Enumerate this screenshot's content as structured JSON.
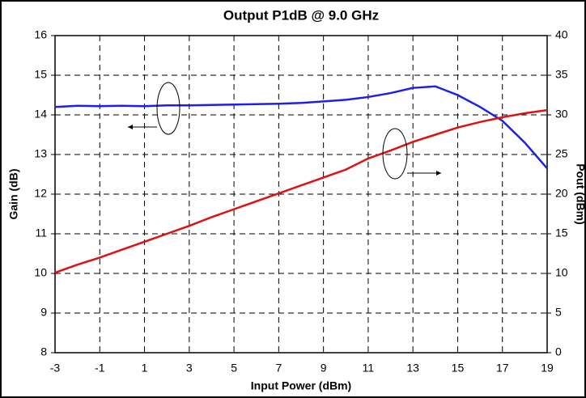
{
  "chart_data": {
    "type": "line",
    "title": "Output P1dB @ 9.0 GHz",
    "xlabel": "Input Power (dBm)",
    "ylabel": "Gain (dB)",
    "y2label": "Pout (dBm)",
    "x": [
      -3,
      -2,
      -1,
      0,
      1,
      2,
      3,
      4,
      5,
      6,
      7,
      8,
      9,
      10,
      11,
      12,
      13,
      14,
      15,
      16,
      17,
      18,
      19
    ],
    "series": [
      {
        "name": "Gain",
        "color": "#1f1fe6",
        "axis": "y",
        "values": [
          14.2,
          14.23,
          14.22,
          14.23,
          14.22,
          14.24,
          14.24,
          14.25,
          14.26,
          14.27,
          14.28,
          14.3,
          14.34,
          14.38,
          14.45,
          14.55,
          14.68,
          14.72,
          14.5,
          14.2,
          13.85,
          13.3,
          12.65
        ]
      },
      {
        "name": "Pout",
        "color": "#e01010",
        "axis": "y2",
        "values": [
          10.1,
          11.1,
          12.0,
          13.0,
          14.0,
          15.0,
          16.0,
          17.1,
          18.1,
          19.1,
          20.1,
          21.1,
          22.1,
          23.1,
          24.5,
          25.5,
          26.6,
          27.5,
          28.4,
          29.1,
          29.7,
          30.2,
          30.6
        ]
      }
    ],
    "xlim": [
      -3,
      19
    ],
    "xticks": [
      -3,
      -1,
      1,
      3,
      5,
      7,
      9,
      11,
      13,
      15,
      17,
      19
    ],
    "ylim": [
      8,
      16
    ],
    "yticks": [
      8,
      9,
      10,
      11,
      12,
      13,
      14,
      15,
      16
    ],
    "y2lim": [
      0,
      40
    ],
    "y2ticks": [
      0,
      5,
      10,
      15,
      20,
      25,
      30,
      35,
      40
    ],
    "grid": true
  }
}
